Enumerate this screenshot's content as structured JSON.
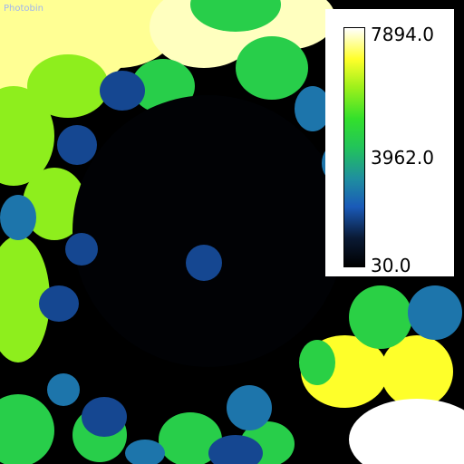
{
  "overlay_text": "Photobin",
  "chart_data": {
    "type": "heatmap",
    "title": "",
    "xlabel": "",
    "ylabel": "",
    "colorbar": {
      "min": 30.0,
      "max": 7894.0,
      "ticks": [
        "7894.0",
        "3962.0",
        "30.0"
      ],
      "colors": [
        "#000000",
        "#0a1a35",
        "#1a5ab8",
        "#1f8f9f",
        "#22c45a",
        "#33e02b",
        "#9cf01b",
        "#ffff2a",
        "#ffffff"
      ],
      "placement": "top-right"
    },
    "regions": [
      {
        "id": "top-left-light",
        "value": 7400
      },
      {
        "id": "top-center-light",
        "value": 7600
      },
      {
        "id": "top-green",
        "value": 4300
      },
      {
        "id": "left-lime",
        "value": 5800
      },
      {
        "id": "center-lime-oval",
        "value": 5500
      },
      {
        "id": "center-yellow-oval",
        "value": 7000
      },
      {
        "id": "right-yellow",
        "value": 6900
      },
      {
        "id": "right-green",
        "value": 4400
      },
      {
        "id": "bottom-right-white",
        "value": 7894
      },
      {
        "id": "bottom-left-green",
        "value": 4300
      },
      {
        "id": "dark-ring",
        "value": 120
      },
      {
        "id": "blue-cells",
        "value": 1700
      },
      {
        "id": "teal-cells",
        "value": 2500
      }
    ]
  }
}
